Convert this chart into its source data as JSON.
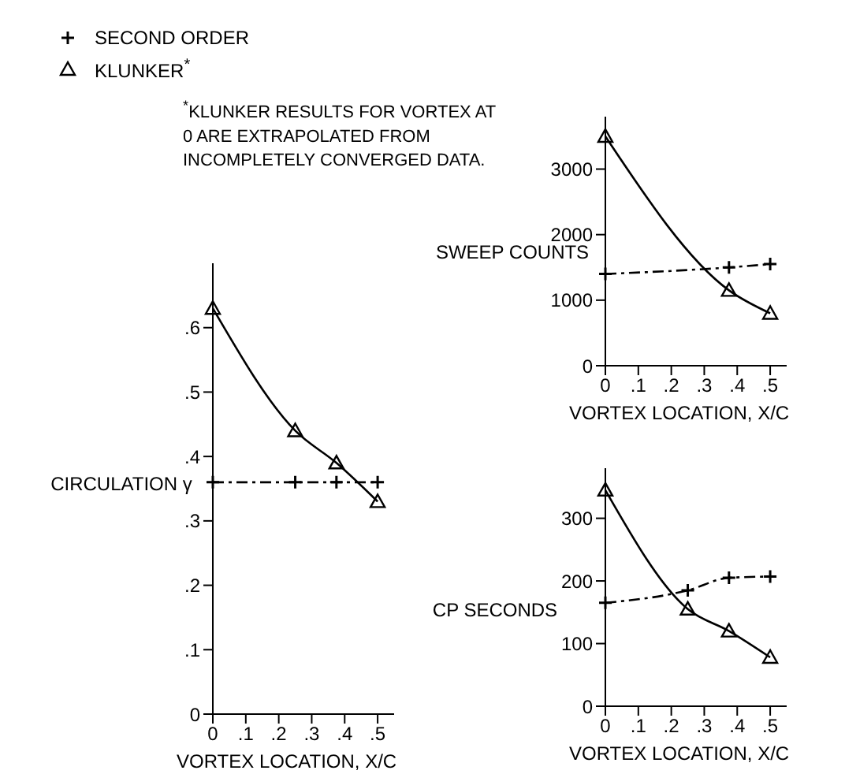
{
  "chart_data": [
    {
      "type": "line",
      "xlabel": "VORTEX LOCATION, X/C",
      "ylabel": "CIRCULATION γ",
      "legend": "top left",
      "annotations": [
        "$^{*}$KLUNKER RESULTS FOR VORTEX AT 0 ARE EXTRAPOLATED FROM INCOMPLETELY CONVERGED DATA."
      ],
      "xlim": [
        0,
        0.55
      ],
      "xticks": [
        {
          "value": 0,
          "label": "0"
        },
        {
          "value": 0.1,
          "label": ".1"
        },
        {
          "value": 0.2,
          "label": ".2"
        },
        {
          "value": 0.3,
          "label": ".3"
        },
        {
          "value": 0.4,
          "label": ".4"
        },
        {
          "value": 0.5,
          "label": ".5"
        }
      ],
      "ylim": [
        0,
        0.7
      ],
      "yticks": [
        0,
        {
          "value": 0.1,
          "label": ".1"
        },
        {
          "value": 0.2,
          "label": ".2"
        },
        {
          "value": 0.3,
          "label": ".3"
        },
        {
          "value": 0.4,
          "label": ".4"
        },
        {
          "value": 0.5,
          "label": ".5"
        },
        {
          "value": 0.6,
          "label": ".6"
        }
      ],
      "series": [
        {
          "name": "SECOND ORDER",
          "color": "#000000",
          "marker": "cross",
          "line_style": "dashed",
          "x": [
            0,
            0.25,
            0.375,
            0.5
          ],
          "values": [
            0.36,
            0.36,
            0.36,
            0.36
          ]
        },
        {
          "name": "KLUNKER$^{*}$",
          "color": "#000000",
          "marker": "triangle",
          "line_style": "solid",
          "x": [
            0,
            0.25,
            0.375,
            0.5
          ],
          "values": [
            0.63,
            0.44,
            0.39,
            0.33
          ]
        }
      ]
    },
    {
      "type": "line",
      "xlabel": "VORTEX LOCATION, X/C",
      "ylabel": "SWEEP COUNTS",
      "xlim": [
        0,
        0.55
      ],
      "xticks": [
        {
          "value": 0,
          "label": "0"
        },
        {
          "value": 0.1,
          "label": ".1"
        },
        {
          "value": 0.2,
          "label": ".2"
        },
        {
          "value": 0.3,
          "label": ".3"
        },
        {
          "value": 0.4,
          "label": ".4"
        },
        {
          "value": 0.5,
          "label": ".5"
        }
      ],
      "ylim": [
        0,
        3800
      ],
      "yticks": [
        0,
        1000,
        2000,
        3000
      ],
      "series": [
        {
          "color": "#000000",
          "marker": "cross",
          "line_style": "dashed",
          "x": [
            0,
            0.375,
            0.5
          ],
          "values": [
            1400,
            1500,
            1550
          ]
        },
        {
          "color": "#000000",
          "marker": "triangle",
          "line_style": "solid",
          "x": [
            0,
            0.375,
            0.5
          ],
          "values": [
            3500,
            1150,
            800
          ]
        }
      ]
    },
    {
      "type": "line",
      "xlabel": "VORTEX LOCATION, X/C",
      "ylabel": "CP SECONDS",
      "xlim": [
        0,
        0.55
      ],
      "xticks": [
        {
          "value": 0,
          "label": "0"
        },
        {
          "value": 0.1,
          "label": ".1"
        },
        {
          "value": 0.2,
          "label": ".2"
        },
        {
          "value": 0.3,
          "label": ".3"
        },
        {
          "value": 0.4,
          "label": ".4"
        },
        {
          "value": 0.5,
          "label": ".5"
        }
      ],
      "ylim": [
        0,
        380
      ],
      "yticks": [
        0,
        100,
        200,
        300
      ],
      "series": [
        {
          "color": "#000000",
          "marker": "cross",
          "line_style": "dashed",
          "x": [
            0,
            0.25,
            0.375,
            0.5
          ],
          "values": [
            165,
            185,
            205,
            207
          ]
        },
        {
          "color": "#000000",
          "marker": "triangle",
          "line_style": "solid",
          "x": [
            0,
            0.25,
            0.375,
            0.5
          ],
          "values": [
            345,
            155,
            120,
            78
          ]
        }
      ]
    }
  ]
}
